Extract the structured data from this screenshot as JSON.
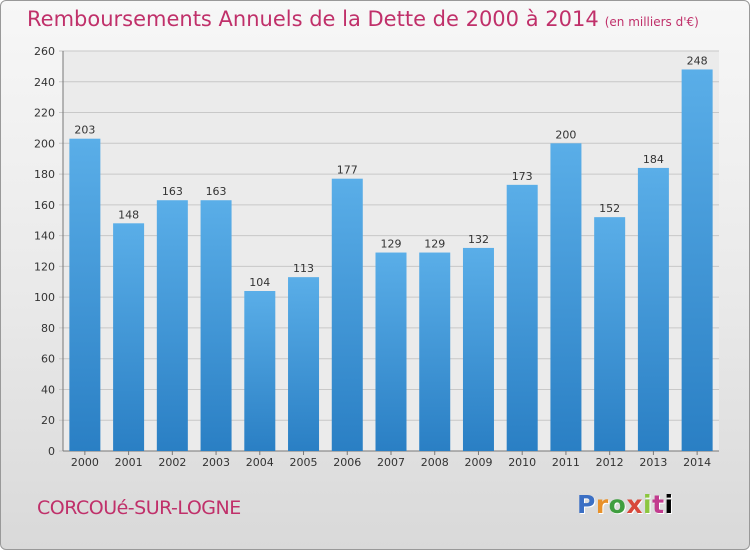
{
  "title": "Remboursements Annuels de la Dette de 2000 à 2014",
  "title_unit": "(en milliers d'€)",
  "commune": "CORCOUé-SUR-LOGNE",
  "logo": [
    "P",
    "r",
    "o",
    "x",
    "i",
    "t",
    "i"
  ],
  "colors": {
    "title": "#c0306a",
    "bar_top": "#5aaee8",
    "bar_bottom": "#2a7fc4",
    "grid": "#c8c8c8"
  },
  "chart_data": {
    "type": "bar",
    "title": "Remboursements Annuels de la Dette de 2000 à 2014",
    "subtitle": "(en milliers d'€)",
    "categories": [
      "2000",
      "2001",
      "2002",
      "2003",
      "2004",
      "2005",
      "2006",
      "2007",
      "2008",
      "2009",
      "2010",
      "2011",
      "2012",
      "2013",
      "2014"
    ],
    "values": [
      203,
      148,
      163,
      163,
      104,
      113,
      177,
      129,
      129,
      132,
      173,
      200,
      152,
      184,
      248
    ],
    "ylim": [
      0,
      260
    ],
    "yticks": [
      0,
      20,
      40,
      60,
      80,
      100,
      120,
      140,
      160,
      180,
      200,
      220,
      240,
      260
    ],
    "grid": true,
    "data_labels": true
  }
}
